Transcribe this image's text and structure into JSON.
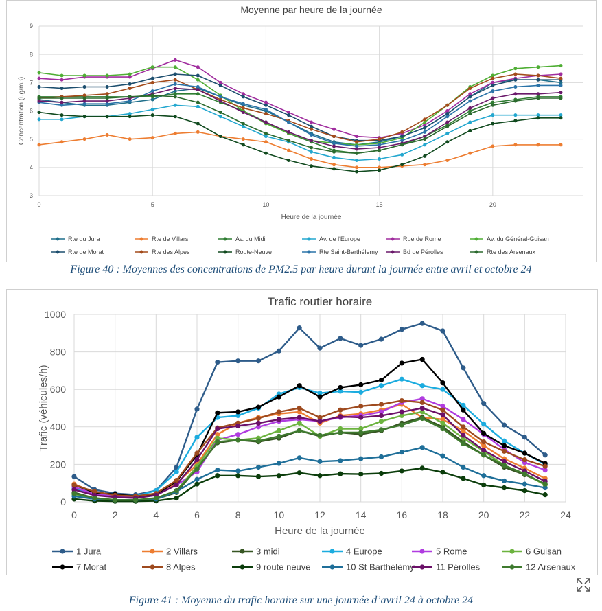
{
  "figure40": {
    "caption": "Figure 40 : Moyennes des concentrations de PM2.5 par heure durant la journée entre avril et octobre 24",
    "chart_data": {
      "type": "line",
      "title": "Moyenne par heure de la journée",
      "xlabel": "Heure de la journée",
      "ylabel": "Concentration (ug/m3)",
      "xlim": [
        0,
        24
      ],
      "ylim": [
        3,
        9
      ],
      "x_ticks": [
        "0",
        "5",
        "10",
        "15",
        "20"
      ],
      "y_ticks": [
        "3",
        "4",
        "5",
        "6",
        "7",
        "8",
        "9"
      ],
      "x": [
        0,
        1,
        2,
        3,
        4,
        5,
        6,
        7,
        8,
        9,
        10,
        11,
        12,
        13,
        14,
        15,
        16,
        17,
        18,
        19,
        20,
        21,
        22,
        23
      ],
      "series": [
        {
          "name": "Rte du Jura",
          "color": "#1f6f8b",
          "values": [
            6.4,
            6.3,
            6.2,
            6.2,
            6.3,
            6.4,
            6.7,
            6.8,
            6.5,
            6.2,
            6.0,
            5.6,
            5.2,
            4.9,
            4.8,
            4.9,
            5.1,
            5.4,
            5.9,
            6.5,
            7.0,
            7.1,
            7.1,
            7.0
          ]
        },
        {
          "name": "Rte de Villars",
          "color": "#ed7d31",
          "values": [
            4.8,
            4.9,
            5.0,
            5.15,
            5.0,
            5.05,
            5.2,
            5.25,
            5.1,
            5.0,
            4.9,
            4.6,
            4.3,
            4.1,
            4.0,
            4.0,
            4.05,
            4.1,
            4.25,
            4.5,
            4.75,
            4.8,
            4.8,
            4.8
          ]
        },
        {
          "name": "Av. du Midi",
          "color": "#2f7d32",
          "values": [
            6.5,
            6.5,
            6.5,
            6.5,
            6.5,
            6.5,
            6.6,
            6.6,
            6.3,
            6.0,
            5.6,
            5.2,
            4.9,
            4.6,
            4.5,
            4.6,
            4.8,
            5.1,
            5.5,
            6.0,
            6.3,
            6.4,
            6.5,
            6.5
          ]
        },
        {
          "name": "Av. de l'Europe",
          "color": "#23a7cf",
          "values": [
            5.7,
            5.7,
            5.8,
            5.8,
            5.9,
            6.05,
            6.2,
            6.15,
            5.8,
            5.45,
            5.1,
            4.9,
            4.55,
            4.35,
            4.25,
            4.3,
            4.45,
            4.8,
            5.2,
            5.6,
            5.85,
            5.85,
            5.85,
            5.85
          ]
        },
        {
          "name": "Rue de Rome",
          "color": "#a02d9e",
          "values": [
            7.15,
            7.1,
            7.2,
            7.2,
            7.2,
            7.5,
            7.8,
            7.55,
            7.0,
            6.6,
            6.3,
            5.95,
            5.6,
            5.35,
            5.1,
            5.05,
            5.2,
            5.5,
            6.0,
            6.6,
            7.0,
            7.15,
            7.25,
            7.3
          ]
        },
        {
          "name": "Av. du Général-Guisan",
          "color": "#4fae34",
          "values": [
            7.35,
            7.25,
            7.25,
            7.25,
            7.3,
            7.55,
            7.55,
            7.1,
            6.55,
            6.0,
            5.55,
            5.2,
            4.95,
            4.85,
            4.8,
            4.85,
            5.05,
            5.6,
            6.2,
            6.85,
            7.25,
            7.5,
            7.55,
            7.6
          ]
        },
        {
          "name": "Rte de Morat",
          "color": "#1c4e6e",
          "values": [
            6.85,
            6.8,
            6.85,
            6.85,
            6.95,
            7.15,
            7.3,
            7.25,
            6.9,
            6.5,
            6.2,
            5.85,
            5.45,
            5.1,
            4.95,
            4.95,
            5.1,
            5.4,
            5.9,
            6.5,
            6.9,
            7.1,
            7.1,
            7.1
          ]
        },
        {
          "name": "Rte des Alpes",
          "color": "#a34b1b",
          "values": [
            6.45,
            6.5,
            6.55,
            6.6,
            6.8,
            7.0,
            7.1,
            6.75,
            6.4,
            6.1,
            5.9,
            5.65,
            5.35,
            5.1,
            4.9,
            5.0,
            5.25,
            5.7,
            6.2,
            6.8,
            7.15,
            7.3,
            7.25,
            7.15
          ]
        },
        {
          "name": "Route-Neuve",
          "color": "#114a1f",
          "values": [
            5.95,
            5.85,
            5.8,
            5.8,
            5.8,
            5.85,
            5.8,
            5.55,
            5.1,
            4.8,
            4.5,
            4.25,
            4.05,
            3.95,
            3.85,
            3.9,
            4.1,
            4.4,
            4.9,
            5.3,
            5.55,
            5.65,
            5.75,
            5.75
          ]
        },
        {
          "name": "Rte Saint-Barthélemy",
          "color": "#2a73a8",
          "values": [
            6.3,
            6.2,
            6.25,
            6.25,
            6.35,
            6.7,
            6.95,
            6.85,
            6.5,
            6.25,
            6.05,
            5.6,
            5.15,
            4.85,
            4.75,
            4.8,
            4.95,
            5.25,
            5.8,
            6.35,
            6.7,
            6.85,
            6.9,
            6.9
          ]
        },
        {
          "name": "Bd de Pérolles",
          "color": "#6b1a6b",
          "values": [
            6.35,
            6.3,
            6.35,
            6.35,
            6.45,
            6.6,
            6.8,
            6.75,
            6.35,
            5.95,
            5.6,
            5.25,
            4.95,
            4.75,
            4.65,
            4.7,
            4.85,
            5.1,
            5.6,
            6.1,
            6.45,
            6.6,
            6.6,
            6.65
          ]
        },
        {
          "name": "Rte des Arsenaux",
          "color": "#2b6a2e",
          "values": [
            6.45,
            6.45,
            6.45,
            6.45,
            6.5,
            6.55,
            6.5,
            6.3,
            5.95,
            5.55,
            5.2,
            4.95,
            4.7,
            4.55,
            4.5,
            4.6,
            4.8,
            5.0,
            5.45,
            5.9,
            6.2,
            6.35,
            6.45,
            6.45
          ]
        }
      ]
    }
  },
  "figure41": {
    "caption": "Figure 41 : Moyenne du trafic horaire sur une journée d’avril 24 à octobre 24",
    "chart_data": {
      "type": "line",
      "title": "Trafic routier horaire",
      "xlabel": "Heure de la journée",
      "ylabel": "Trafic (véhicules/h)",
      "xlim": [
        0,
        24
      ],
      "ylim": [
        0,
        1000
      ],
      "x_ticks": [
        "0",
        "2",
        "4",
        "6",
        "8",
        "10",
        "12",
        "14",
        "16",
        "18",
        "20",
        "22",
        "24"
      ],
      "y_ticks": [
        "0",
        "200",
        "400",
        "600",
        "800",
        "1000"
      ],
      "x": [
        0,
        1,
        2,
        3,
        4,
        5,
        6,
        7,
        8,
        9,
        10,
        11,
        12,
        13,
        14,
        15,
        16,
        17,
        18,
        19,
        20,
        21,
        22,
        23
      ],
      "series": [
        {
          "name": "1 Jura",
          "color": "#2e5c8a",
          "values": [
            135,
            65,
            45,
            38,
            60,
            185,
            495,
            745,
            752,
            752,
            805,
            928,
            820,
            872,
            835,
            868,
            920,
            952,
            912,
            715,
            525,
            410,
            345,
            250
          ]
        },
        {
          "name": "2 Villars",
          "color": "#ed7d31",
          "values": [
            95,
            50,
            35,
            30,
            40,
            100,
            200,
            360,
            420,
            450,
            470,
            480,
            420,
            460,
            470,
            490,
            520,
            450,
            440,
            380,
            300,
            230,
            180,
            125
          ]
        },
        {
          "name": "3 midi",
          "color": "#375623",
          "values": [
            50,
            20,
            10,
            10,
            15,
            50,
            180,
            315,
            330,
            320,
            340,
            380,
            350,
            370,
            360,
            380,
            420,
            450,
            400,
            320,
            250,
            185,
            145,
            95
          ]
        },
        {
          "name": "4 Europe",
          "color": "#1cacdf",
          "values": [
            70,
            40,
            30,
            30,
            60,
            160,
            345,
            450,
            460,
            500,
            575,
            610,
            580,
            590,
            585,
            620,
            655,
            620,
            600,
            515,
            415,
            325,
            260,
            200
          ]
        },
        {
          "name": "5 Rome",
          "color": "#b03ce0",
          "values": [
            80,
            40,
            30,
            25,
            40,
            90,
            160,
            330,
            360,
            400,
            430,
            440,
            430,
            450,
            460,
            480,
            530,
            550,
            510,
            440,
            360,
            280,
            210,
            170
          ]
        },
        {
          "name": "6 Guisan",
          "color": "#6cb33f",
          "values": [
            40,
            20,
            10,
            10,
            15,
            60,
            190,
            340,
            330,
            340,
            380,
            420,
            350,
            390,
            390,
            430,
            460,
            480,
            420,
            340,
            270,
            195,
            150,
            90
          ]
        },
        {
          "name": "7 Morat",
          "color": "#000000",
          "values": [
            90,
            50,
            40,
            30,
            40,
            110,
            250,
            475,
            480,
            505,
            560,
            620,
            560,
            610,
            625,
            650,
            740,
            760,
            635,
            490,
            365,
            300,
            260,
            205
          ]
        },
        {
          "name": "8 Alpes",
          "color": "#9e4a1e",
          "values": [
            90,
            55,
            35,
            30,
            45,
            115,
            260,
            395,
            420,
            445,
            480,
            500,
            450,
            490,
            510,
            520,
            540,
            530,
            490,
            400,
            320,
            270,
            225,
            190
          ]
        },
        {
          "name": "9 route neuve",
          "color": "#0b3d0b",
          "values": [
            15,
            5,
            3,
            3,
            5,
            20,
            95,
            140,
            140,
            135,
            140,
            155,
            140,
            150,
            148,
            152,
            165,
            180,
            158,
            125,
            90,
            75,
            60,
            38
          ]
        },
        {
          "name": "10 St Barthélémy",
          "color": "#1f6f99",
          "values": [
            30,
            15,
            10,
            10,
            15,
            55,
            120,
            170,
            165,
            185,
            205,
            235,
            215,
            220,
            230,
            240,
            265,
            290,
            245,
            185,
            140,
            112,
            95,
            75
          ]
        },
        {
          "name": "11 Pérolles",
          "color": "#6b1068",
          "values": [
            65,
            35,
            25,
            20,
            35,
            90,
            225,
            390,
            405,
            420,
            440,
            450,
            430,
            455,
            450,
            460,
            480,
            500,
            465,
            355,
            275,
            215,
            165,
            110
          ]
        },
        {
          "name": "12 Arsenaux",
          "color": "#3f7a2f",
          "values": [
            45,
            20,
            10,
            10,
            20,
            60,
            175,
            320,
            330,
            325,
            350,
            380,
            355,
            370,
            370,
            385,
            410,
            445,
            390,
            310,
            250,
            195,
            150,
            95
          ]
        }
      ]
    }
  }
}
